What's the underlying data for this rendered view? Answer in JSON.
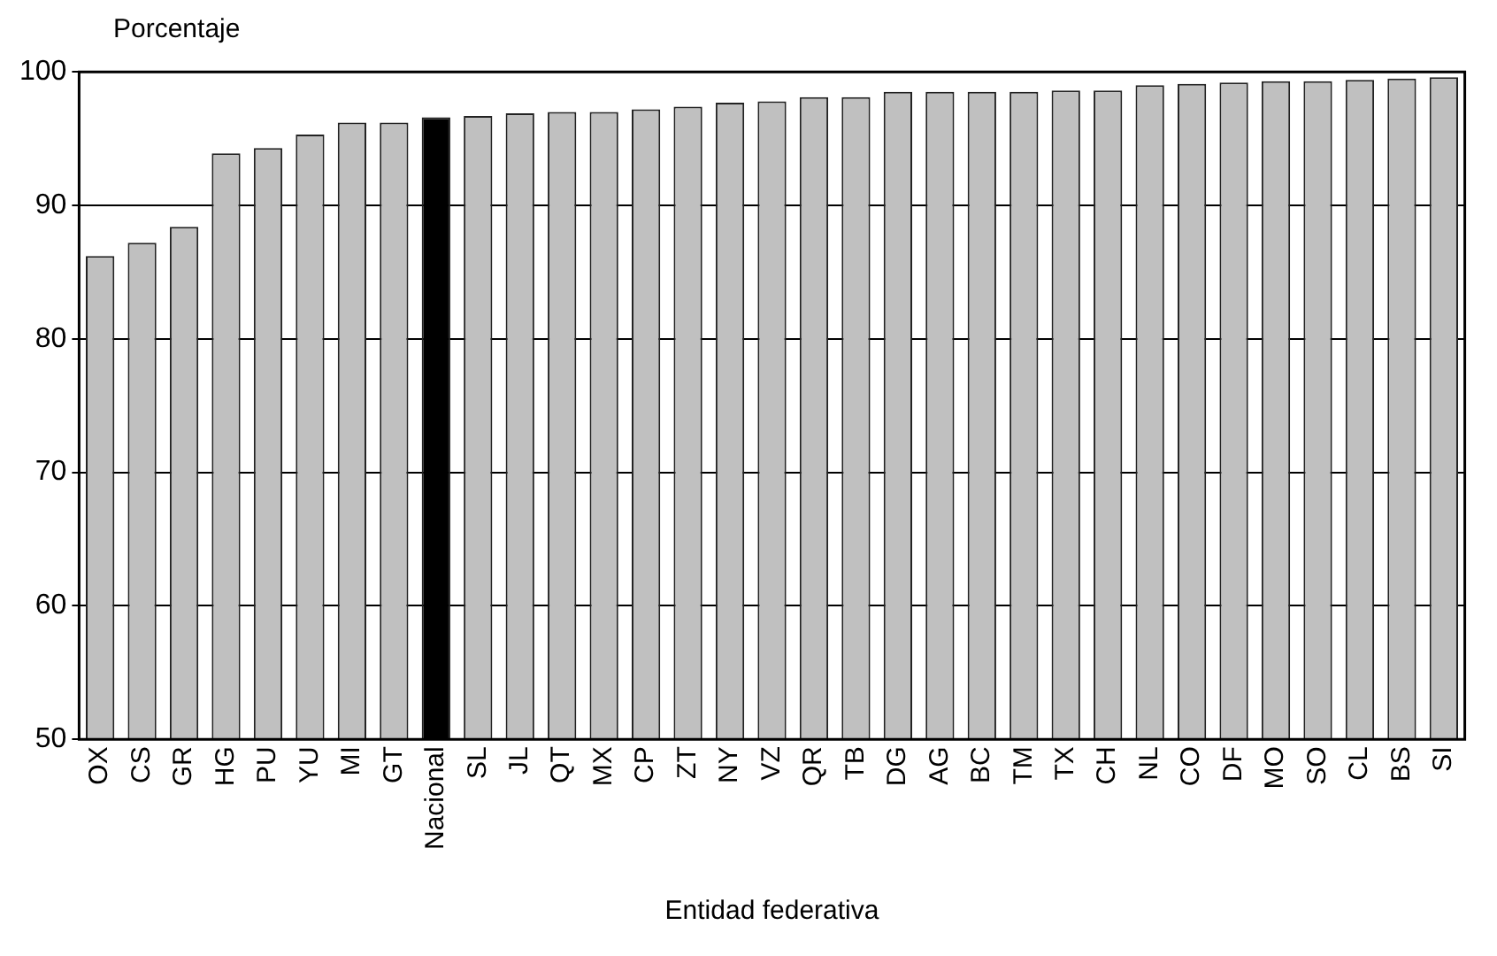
{
  "chart_data": {
    "type": "bar",
    "ylabel": "Porcentaje",
    "xlabel": "Entidad federativa",
    "categories": [
      "OX",
      "CS",
      "GR",
      "HG",
      "PU",
      "YU",
      "MI",
      "GT",
      "Nacional",
      "SL",
      "JL",
      "QT",
      "MX",
      "CP",
      "ZT",
      "NY",
      "VZ",
      "QR",
      "TB",
      "DG",
      "AG",
      "BC",
      "TM",
      "TX",
      "CH",
      "NL",
      "CO",
      "DF",
      "MO",
      "SO",
      "CL",
      "BS",
      "SI"
    ],
    "values": [
      86.2,
      87.2,
      88.4,
      93.9,
      94.3,
      95.3,
      96.2,
      96.2,
      96.6,
      96.7,
      96.9,
      97.0,
      97.0,
      97.2,
      97.4,
      97.7,
      97.8,
      98.1,
      98.1,
      98.5,
      98.5,
      98.5,
      98.5,
      98.6,
      98.6,
      99.0,
      99.1,
      99.2,
      99.3,
      99.3,
      99.4,
      99.5,
      99.6
    ],
    "colors": [
      "#c0c0c0",
      "#c0c0c0",
      "#c0c0c0",
      "#c0c0c0",
      "#c0c0c0",
      "#c0c0c0",
      "#c0c0c0",
      "#c0c0c0",
      "#000000",
      "#c0c0c0",
      "#c0c0c0",
      "#c0c0c0",
      "#c0c0c0",
      "#c0c0c0",
      "#c0c0c0",
      "#c0c0c0",
      "#c0c0c0",
      "#c0c0c0",
      "#c0c0c0",
      "#c0c0c0",
      "#c0c0c0",
      "#c0c0c0",
      "#c0c0c0",
      "#c0c0c0",
      "#c0c0c0",
      "#c0c0c0",
      "#c0c0c0",
      "#c0c0c0",
      "#c0c0c0",
      "#c0c0c0",
      "#c0c0c0",
      "#c0c0c0",
      "#c0c0c0"
    ],
    "ylim": [
      50,
      100
    ],
    "yticks": [
      50,
      60,
      70,
      80,
      90,
      100
    ],
    "grid": "y",
    "legend": false
  }
}
